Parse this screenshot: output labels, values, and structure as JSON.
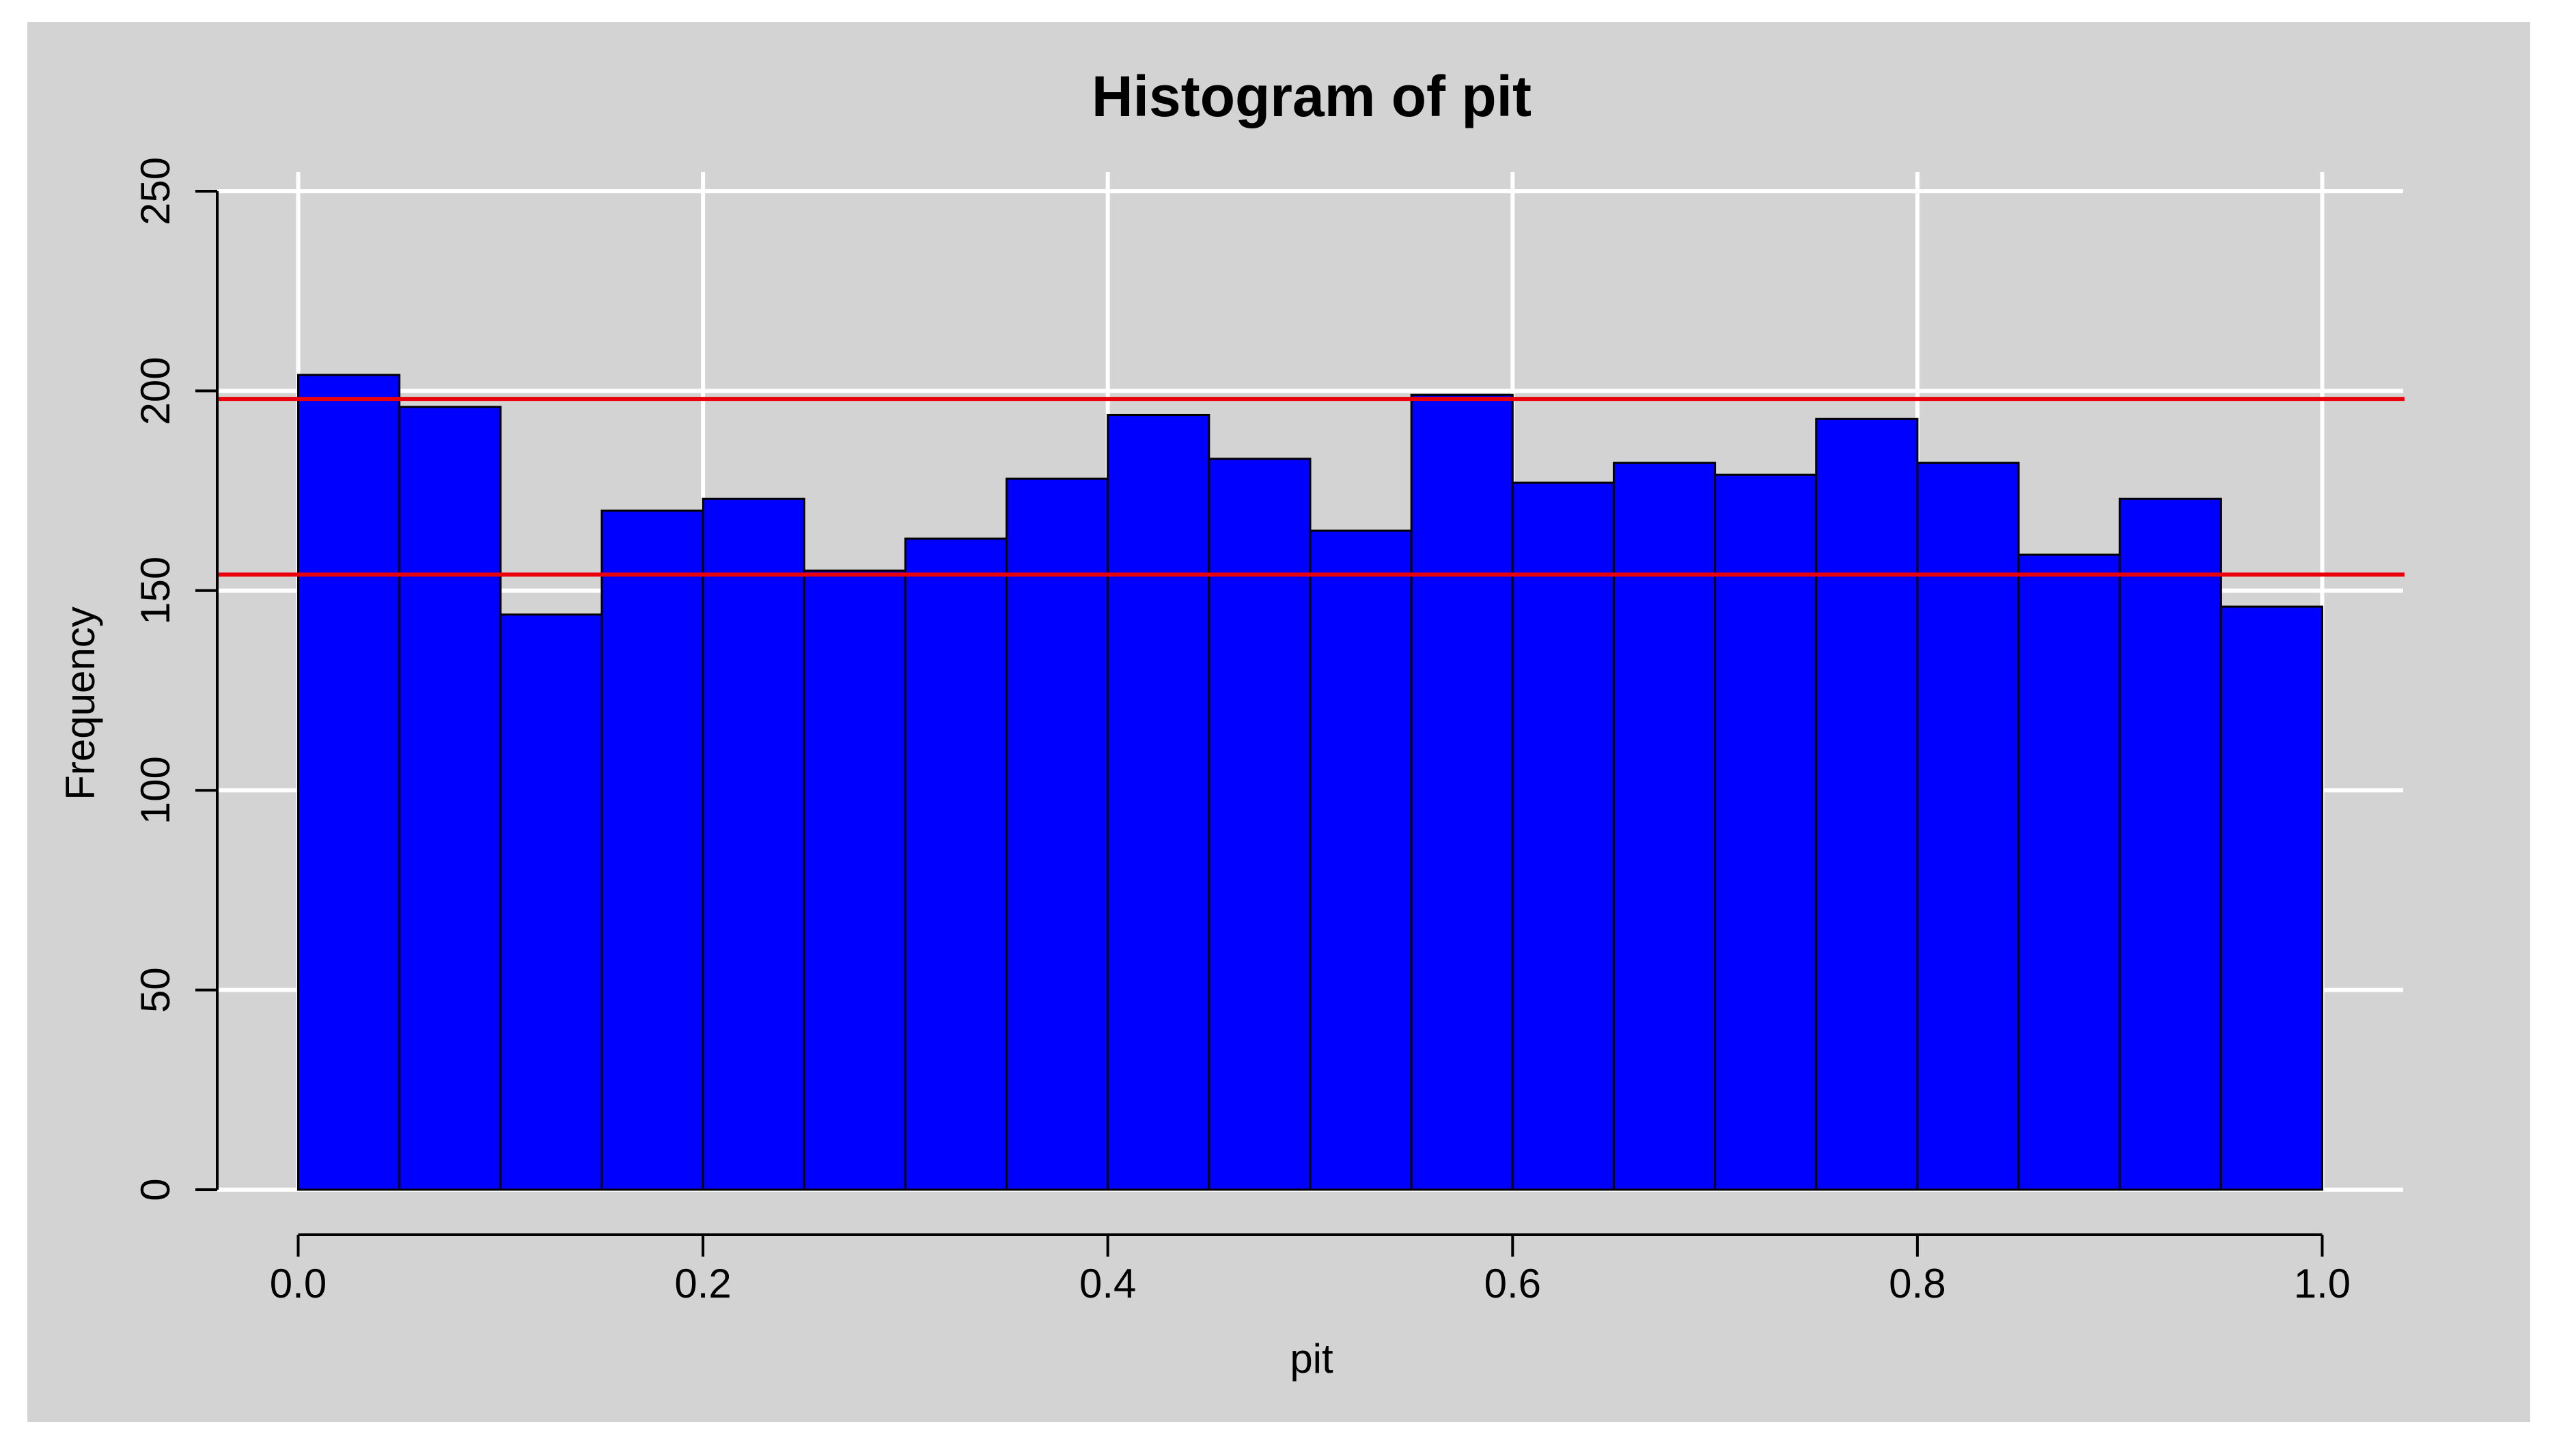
{
  "chart_data": {
    "type": "bar",
    "title": "Histogram of pit",
    "xlabel": "pit",
    "ylabel": "Frequency",
    "bin_edges": [
      0.0,
      0.05,
      0.1,
      0.15,
      0.2,
      0.25,
      0.3,
      0.35,
      0.4,
      0.45,
      0.5,
      0.55,
      0.6,
      0.65,
      0.7,
      0.75,
      0.8,
      0.85,
      0.9,
      0.95,
      1.0
    ],
    "values": [
      204,
      196,
      144,
      170,
      173,
      155,
      163,
      178,
      194,
      183,
      165,
      199,
      177,
      182,
      179,
      193,
      182,
      159,
      173,
      146
    ],
    "xlim": [
      -0.04,
      1.04
    ],
    "ylim": [
      0,
      250
    ],
    "x_ticks": [
      0.0,
      0.2,
      0.4,
      0.6,
      0.8,
      1.0
    ],
    "x_tick_labels": [
      "0.0",
      "0.2",
      "0.4",
      "0.6",
      "0.8",
      "1.0"
    ],
    "y_ticks": [
      0,
      50,
      100,
      150,
      200,
      250
    ],
    "y_tick_labels": [
      "0",
      "50",
      "100",
      "150",
      "200",
      "250"
    ],
    "reference_lines": [
      198,
      154
    ],
    "grid": true,
    "colors": {
      "background": "#d3d3d3",
      "bar_fill": "#0000ff",
      "bar_edge": "#000000",
      "grid": "#ffffff",
      "reference_line": "#e8000b"
    }
  }
}
